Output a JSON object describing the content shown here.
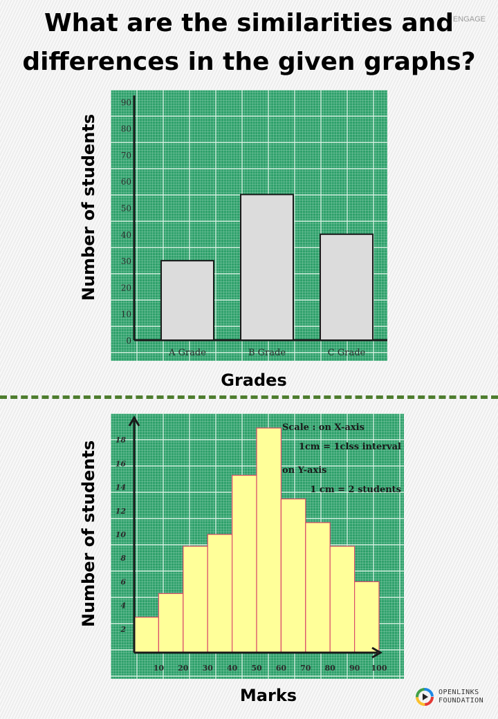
{
  "header": {
    "title_line1": "What are the similarities and",
    "title_line2": "differences in the given graphs?",
    "tag": "ENGAGE"
  },
  "logo": {
    "line1": "OPENLINKS",
    "line2": "FOUNDATION"
  },
  "colors": {
    "grid_bg": "#2da06a",
    "grid_line": "#ddf3e6",
    "bar_fill_top": "#d9d9d9",
    "hist_fill": "#ffff99",
    "hist_edge": "#d94a6a",
    "divider": "#4e7d2e"
  },
  "chart_data": [
    {
      "type": "bar",
      "categories": [
        "A Grade",
        "B Grade",
        "C Grade"
      ],
      "values": [
        30,
        55,
        40
      ],
      "xlabel": "Grades",
      "ylabel": "Number of students",
      "yticks": [
        0,
        10,
        20,
        30,
        40,
        50,
        60,
        70,
        80,
        90
      ],
      "ylim": [
        0,
        92
      ],
      "grid": true
    },
    {
      "type": "bar",
      "subtype": "histogram",
      "bins": [
        [
          0,
          10
        ],
        [
          10,
          20
        ],
        [
          20,
          30
        ],
        [
          30,
          40
        ],
        [
          40,
          50
        ],
        [
          50,
          60
        ],
        [
          60,
          70
        ],
        [
          70,
          80
        ],
        [
          80,
          90
        ],
        [
          90,
          100
        ]
      ],
      "values": [
        3,
        5,
        9,
        10,
        15,
        19,
        13,
        11,
        9,
        6
      ],
      "xticks": [
        "10",
        "20",
        "30",
        "40",
        "50",
        "60",
        "70",
        "80",
        "90",
        "100"
      ],
      "yticks": [
        2,
        4,
        6,
        8,
        10,
        12,
        14,
        16,
        18
      ],
      "xlim": [
        0,
        100
      ],
      "ylim": [
        0,
        20
      ],
      "xlabel": "Marks",
      "ylabel": "Number of students",
      "annotations": [
        "Scale : on X-axis",
        "1cm = 1clss interval",
        "on Y-axis",
        "1 cm = 2 students"
      ],
      "grid": true
    }
  ]
}
